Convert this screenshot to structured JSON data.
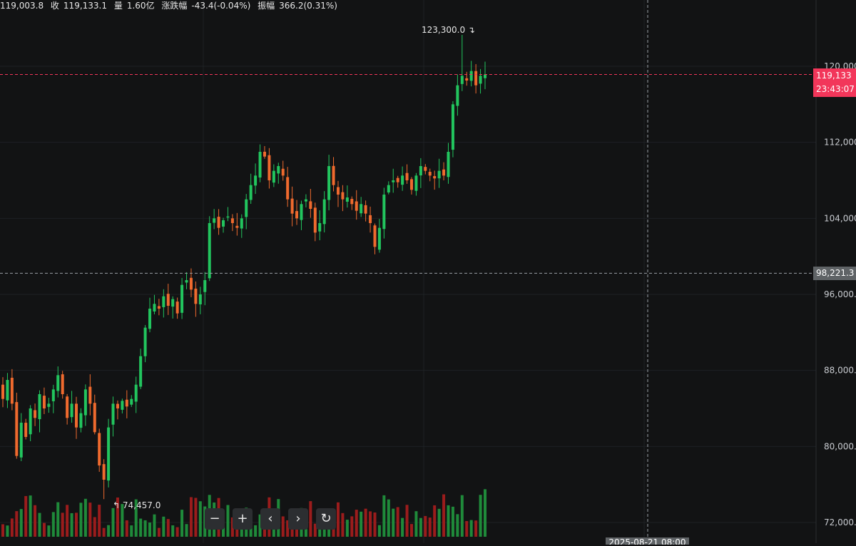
{
  "info_bar": {
    "open_value": "119,003.8",
    "close_label": "收",
    "close_value": "119,133.1",
    "volume_label": "量",
    "volume_value": "1.60亿",
    "change_label": "涨跌幅",
    "change_value": "-43.4(-0.04%)",
    "amplitude_label": "振幅",
    "amplitude_value": "366.2(0.31%)"
  },
  "price_axis": {
    "tick_labels": [
      "120,000",
      "112,000",
      "104,000",
      "96,000.",
      "88,000.",
      "80,000.",
      "72,000."
    ],
    "last_price": "119,133",
    "countdown": "23:43:07",
    "crosshair_price": "98,221.3"
  },
  "time_axis": {
    "crosshair_time": "2025-08-21 08:00"
  },
  "extremes": {
    "high_label": "123,300.0",
    "low_label": "74,457.0"
  },
  "nav_buttons": [
    {
      "label": "−",
      "icon": "zoom-out-icon"
    },
    {
      "label": "+",
      "icon": "zoom-in-icon"
    },
    {
      "label": "‹",
      "icon": "scroll-left-icon"
    },
    {
      "label": "›",
      "icon": "scroll-right-icon"
    },
    {
      "label": "↻",
      "icon": "reset-icon"
    }
  ],
  "colors": {
    "up": "#22c55e",
    "down": "#ef6a2e",
    "vol_up": "#1f8a3a",
    "vol_down": "#9b1c1c",
    "last_line": "#f2365a",
    "crosshair": "#9aa0a6",
    "grid": "#1e2124"
  },
  "chart_data": {
    "type": "candlestick",
    "ylim": [
      72000,
      124000
    ],
    "y_ticks": [
      120000,
      112000,
      104000,
      96000,
      88000,
      80000,
      72000
    ],
    "last_price": 119133.1,
    "crosshair_price": 98221.3,
    "high": 123300.0,
    "low": 74457.0,
    "close_path": [
      85000,
      87000,
      84500,
      79000,
      82500,
      81000,
      84000,
      83000,
      85500,
      84000,
      84500,
      86000,
      87500,
      85500,
      83000,
      84500,
      82000,
      83500,
      86000,
      84500,
      81500,
      78000,
      76500,
      82000,
      84500,
      84000,
      84800,
      84200,
      85000,
      86500,
      89500,
      92500,
      94500,
      95000,
      94500,
      95800,
      94800,
      95500,
      94000,
      97000,
      97500,
      96500,
      95000,
      96000,
      97500,
      103500,
      104000,
      103000,
      103800,
      104200,
      103500,
      103000,
      104000,
      106000,
      107500,
      108500,
      111000,
      110500,
      108000,
      109000,
      109500,
      108500,
      106000,
      104500,
      104000,
      105500,
      106000,
      105000,
      102500,
      103500,
      106000,
      109500,
      107500,
      106500,
      106000,
      106200,
      105500,
      104800,
      105500,
      104500,
      103500,
      101000,
      103000,
      106500,
      107500,
      108000,
      107800,
      108500,
      108000,
      107000,
      108500,
      109500,
      109000,
      108500,
      108200,
      109000,
      108500,
      111000,
      116000,
      118000,
      119000,
      118500,
      119500,
      118000,
      119000,
      119133
    ]
  }
}
